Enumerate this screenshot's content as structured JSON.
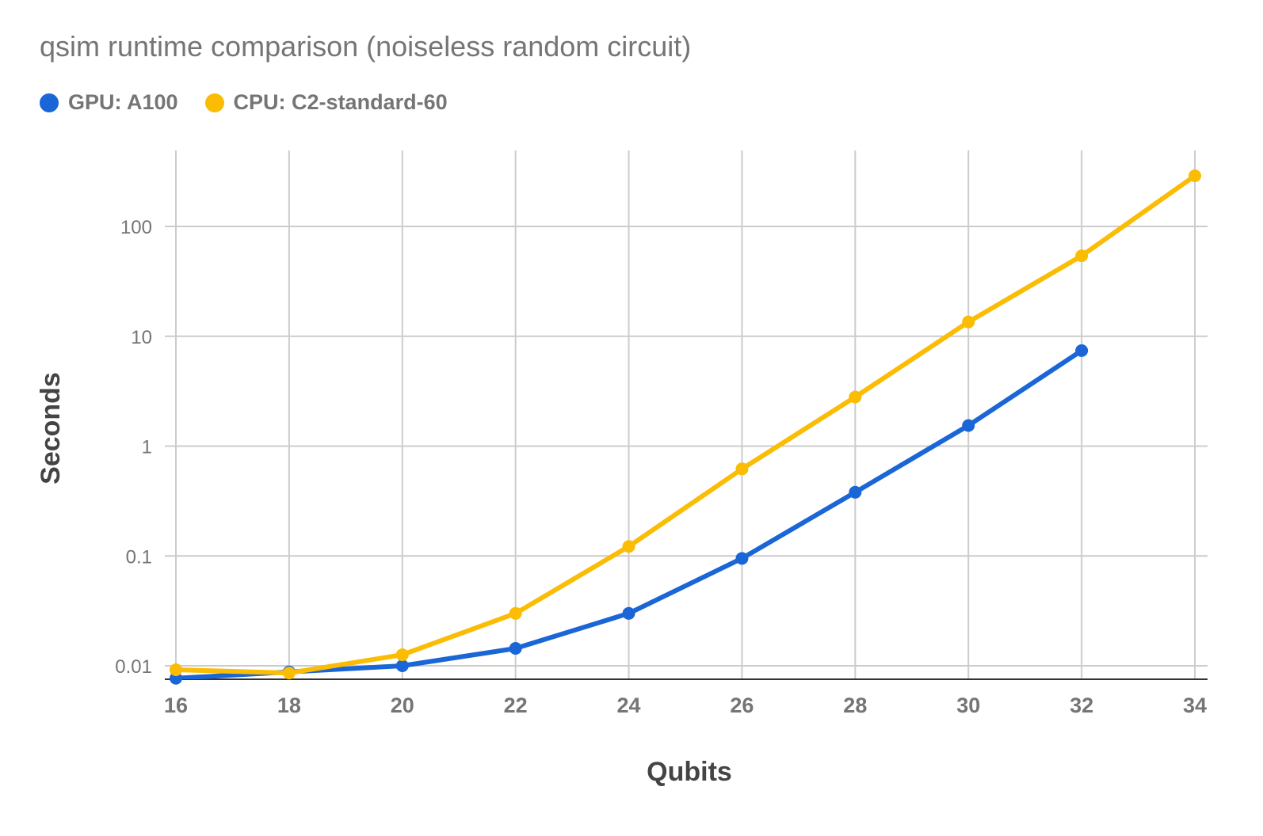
{
  "chart_data": {
    "type": "line",
    "title": "qsim runtime comparison (noiseless random circuit)",
    "xlabel": "Qubits",
    "ylabel": "Seconds",
    "yscale": "log",
    "ylim": [
      0.0075,
      500
    ],
    "xlim": [
      16,
      34
    ],
    "x_ticks": [
      16,
      18,
      20,
      22,
      24,
      26,
      28,
      30,
      32,
      34
    ],
    "y_ticks": [
      0.01,
      0.1,
      1,
      10,
      100
    ],
    "y_tick_labels": [
      "0.01",
      "0.1",
      "1",
      "10",
      "100"
    ],
    "grid": true,
    "legend_position": "top-left",
    "series": [
      {
        "name": "GPU: A100",
        "color": "#1a66d6",
        "x": [
          16,
          18,
          20,
          22,
          24,
          26,
          28,
          30,
          32
        ],
        "y": [
          0.0077,
          0.0088,
          0.01,
          0.0144,
          0.03,
          0.095,
          0.38,
          1.54,
          7.4
        ]
      },
      {
        "name": "CPU: C2-standard-60",
        "color": "#fbbc04",
        "x": [
          16,
          18,
          20,
          22,
          24,
          26,
          28,
          30,
          32,
          34
        ],
        "y": [
          0.0092,
          0.0086,
          0.0126,
          0.03,
          0.122,
          0.62,
          2.8,
          13.5,
          54,
          289
        ]
      }
    ]
  }
}
